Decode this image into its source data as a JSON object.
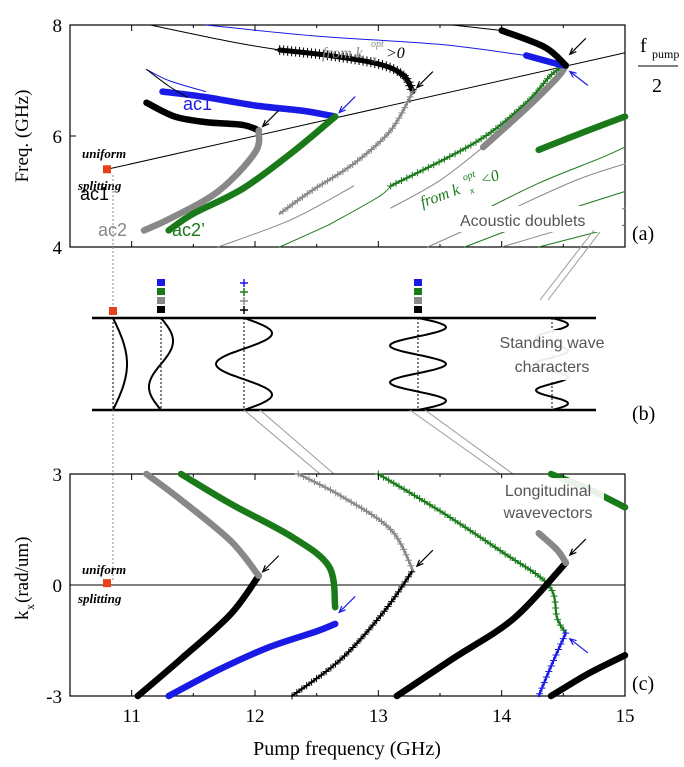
{
  "chart_data": [
    {
      "id": "a",
      "type": "line",
      "panel_label": "(a)",
      "ylabel": "Freq. (GHz)",
      "xlim": [
        10.5,
        15
      ],
      "ylim": [
        4,
        8
      ],
      "yticks": [
        "4",
        "6",
        "8"
      ],
      "fpump_label": {
        "num": "f",
        "sub": "pump",
        "den": "2"
      },
      "fpump_line": {
        "x": [
          10.8,
          15
        ],
        "y": [
          5.4,
          7.5
        ]
      },
      "annotations": {
        "ac1": "ac1",
        "ac1p": "ac1’",
        "ac2": "ac2",
        "ac2p": "ac2’",
        "uniform1": "uniform",
        "uniform2": "splitting",
        "from_pos_pre": "from k",
        "from_pos_sub": "x",
        "from_pos_sup": "opt",
        "from_pos_post": ">0",
        "from_neg_pre": "from k",
        "from_neg_sub": "x",
        "from_neg_sup": "opt",
        "from_neg_post": "<0",
        "acoustic_doublets": "Acoustic doublets"
      },
      "marker_uniform": {
        "x": 10.8,
        "y": 5.4,
        "color": "#e8401c"
      },
      "series": [
        {
          "color": "#000000",
          "style": "thick",
          "points": [
            [
              11.12,
              6.6
            ],
            [
              11.35,
              6.35
            ],
            [
              11.6,
              6.25
            ],
            [
              11.9,
              6.2
            ],
            [
              12.03,
              6.1
            ]
          ]
        },
        {
          "color": "#888888",
          "style": "thick",
          "points": [
            [
              12.03,
              6.1
            ],
            [
              12.0,
              5.7
            ],
            [
              11.7,
              5.0
            ],
            [
              11.3,
              4.5
            ],
            [
              11.1,
              4.3
            ]
          ]
        },
        {
          "color": "#1a1ae6",
          "style": "thick",
          "points": [
            [
              11.25,
              6.8
            ],
            [
              11.6,
              6.7
            ],
            [
              12.0,
              6.55
            ],
            [
              12.4,
              6.45
            ],
            [
              12.65,
              6.35
            ]
          ]
        },
        {
          "color": "#1a7a1a",
          "style": "thick",
          "points": [
            [
              12.65,
              6.35
            ],
            [
              12.3,
              5.7
            ],
            [
              11.9,
              5.05
            ],
            [
              11.5,
              4.6
            ],
            [
              11.3,
              4.3
            ]
          ]
        },
        {
          "color": "#1a1ae6",
          "style": "thin",
          "points": [
            [
              11.12,
              7.2
            ],
            [
              11.3,
              7.0
            ],
            [
              11.6,
              6.8
            ]
          ]
        },
        {
          "color": "#000000",
          "style": "thin",
          "points": [
            [
              11.12,
              7.2
            ],
            [
              11.3,
              6.9
            ],
            [
              11.45,
              6.7
            ]
          ]
        },
        {
          "color": "#000000",
          "style": "thin",
          "points": [
            [
              11.15,
              8.0
            ],
            [
              11.8,
              7.7
            ],
            [
              12.2,
              7.55
            ]
          ]
        },
        {
          "color": "#000000",
          "style": "thickplus",
          "points": [
            [
              12.2,
              7.55
            ],
            [
              12.6,
              7.45
            ],
            [
              13.0,
              7.3
            ],
            [
              13.2,
              7.1
            ],
            [
              13.28,
              6.8
            ]
          ]
        },
        {
          "color": "#888888",
          "style": "thinplus",
          "points": [
            [
              13.28,
              6.8
            ],
            [
              13.1,
              6.1
            ],
            [
              12.8,
              5.5
            ],
            [
              12.45,
              5.0
            ],
            [
              12.2,
              4.6
            ]
          ]
        },
        {
          "color": "#1a7a1a",
          "style": "thinplus",
          "points": [
            [
              13.1,
              5.1
            ],
            [
              13.8,
              5.9
            ],
            [
              14.2,
              6.6
            ],
            [
              14.4,
              7.1
            ],
            [
              14.52,
              7.27
            ]
          ]
        },
        {
          "color": "#1a7a1a",
          "style": "thin",
          "points": [
            [
              12.6,
              4.4
            ],
            [
              13.0,
              4.9
            ],
            [
              13.1,
              5.1
            ]
          ]
        },
        {
          "color": "#888888",
          "style": "thick",
          "points": [
            [
              13.85,
              5.8
            ],
            [
              14.2,
              6.5
            ],
            [
              14.45,
              7.05
            ],
            [
              14.52,
              7.27
            ]
          ]
        },
        {
          "color": "#888888",
          "style": "thin",
          "points": [
            [
              13.1,
              4.7
            ],
            [
              13.5,
              5.2
            ],
            [
              13.85,
              5.8
            ]
          ]
        },
        {
          "color": "#1a1ae6",
          "style": "thin",
          "points": [
            [
              11.6,
              8.0
            ],
            [
              12.5,
              7.8
            ],
            [
              13.5,
              7.65
            ],
            [
              14.2,
              7.45
            ]
          ]
        },
        {
          "color": "#1a1ae6",
          "style": "thick",
          "points": [
            [
              14.2,
              7.45
            ],
            [
              14.45,
              7.3
            ],
            [
              14.52,
              7.27
            ]
          ]
        },
        {
          "color": "#000000",
          "style": "thin",
          "points": [
            [
              13.6,
              8.0
            ],
            [
              14.0,
              7.9
            ]
          ]
        },
        {
          "color": "#000000",
          "style": "thick",
          "points": [
            [
              14.0,
              7.9
            ],
            [
              14.35,
              7.6
            ],
            [
              14.52,
              7.27
            ]
          ]
        },
        {
          "color": "#1a7a1a",
          "style": "thick",
          "points": [
            [
              14.3,
              5.75
            ],
            [
              14.7,
              6.1
            ],
            [
              15.0,
              6.35
            ]
          ]
        },
        {
          "color": "#1a7a1a",
          "style": "thin",
          "points": [
            [
              13.8,
              4.6
            ],
            [
              14.3,
              5.15
            ],
            [
              14.8,
              5.6
            ],
            [
              15.0,
              5.8
            ]
          ]
        },
        {
          "color": "#888888",
          "style": "thin",
          "points": [
            [
              13.4,
              4.0
            ],
            [
              14.0,
              4.6
            ],
            [
              14.6,
              5.2
            ],
            [
              15.0,
              5.5
            ]
          ]
        },
        {
          "color": "#1a7a1a",
          "style": "thin",
          "points": [
            [
              13.7,
              4.0
            ],
            [
              14.3,
              4.5
            ],
            [
              15.0,
              5.0
            ]
          ]
        },
        {
          "color": "#888888",
          "style": "thin",
          "points": [
            [
              14.0,
              4.0
            ],
            [
              14.6,
              4.4
            ],
            [
              15.0,
              4.7
            ]
          ]
        },
        {
          "color": "#1a7a1a",
          "style": "thin",
          "points": [
            [
              14.3,
              4.0
            ],
            [
              15.0,
              4.4
            ]
          ]
        },
        {
          "color": "#888888",
          "style": "thin",
          "points": [
            [
              11.7,
              4.0
            ],
            [
              12.3,
              4.5
            ],
            [
              12.8,
              5.1
            ]
          ]
        },
        {
          "color": "#1a7a1a",
          "style": "thin",
          "points": [
            [
              12.2,
              4.0
            ],
            [
              12.6,
              4.4
            ]
          ]
        }
      ],
      "arrows": [
        {
          "x": 12.03,
          "y": 6.1,
          "color": "#000000"
        },
        {
          "x": 12.65,
          "y": 6.35,
          "color": "#1a1ae6"
        },
        {
          "x": 13.28,
          "y": 6.8,
          "color": "#000000"
        },
        {
          "x": 14.52,
          "y": 7.4,
          "color": "#000000",
          "dir": "down"
        },
        {
          "x": 14.52,
          "y": 7.2,
          "color": "#1a1ae6",
          "dir": "up"
        }
      ]
    },
    {
      "id": "b",
      "type": "diagram",
      "panel_label": "(b)",
      "annotations": {
        "line1": "Standing wave",
        "line2": "characters"
      }
    },
    {
      "id": "c",
      "type": "line",
      "panel_label": "(c)",
      "ylabel_main": "k",
      "ylabel_sub": "x",
      "ylabel_rest": " (rad/um)",
      "xlabel": "Pump frequency (GHz)",
      "xlim": [
        10.5,
        15
      ],
      "ylim": [
        -3,
        3
      ],
      "xticks": [
        "11",
        "12",
        "13",
        "14",
        "15"
      ],
      "yticks": [
        "-3",
        "0",
        "3"
      ],
      "annotations": {
        "uniform1": "uniform",
        "uniform2": "splitting",
        "long1": "Longitudinal",
        "long2": "wavevectors"
      },
      "marker_uniform": {
        "x": 10.8,
        "y": 0.05,
        "color": "#e8401c"
      },
      "series": [
        {
          "color": "#000000",
          "style": "thick",
          "points": [
            [
              11.05,
              -3.0
            ],
            [
              11.4,
              -2.0
            ],
            [
              11.8,
              -0.8
            ],
            [
              12.03,
              0.25
            ]
          ]
        },
        {
          "color": "#888888",
          "style": "thick",
          "points": [
            [
              11.12,
              3.0
            ],
            [
              11.4,
              2.3
            ],
            [
              11.8,
              1.2
            ],
            [
              12.03,
              0.25
            ]
          ]
        },
        {
          "color": "#1a7a1a",
          "style": "thick",
          "points": [
            [
              11.4,
              3.0
            ],
            [
              11.8,
              2.2
            ],
            [
              12.3,
              1.3
            ],
            [
              12.6,
              0.5
            ],
            [
              12.65,
              -0.6
            ]
          ]
        },
        {
          "color": "#1a1ae6",
          "style": "thick",
          "points": [
            [
              11.3,
              -3.0
            ],
            [
              11.7,
              -2.3
            ],
            [
              12.1,
              -1.7
            ],
            [
              12.5,
              -1.25
            ],
            [
              12.65,
              -1.05
            ]
          ]
        },
        {
          "color": "#000000",
          "style": "thinplus",
          "points": [
            [
              12.3,
              -3.0
            ],
            [
              12.7,
              -2.0
            ],
            [
              13.05,
              -0.7
            ],
            [
              13.28,
              0.4
            ]
          ]
        },
        {
          "color": "#888888",
          "style": "thinplus",
          "points": [
            [
              12.35,
              3.0
            ],
            [
              12.7,
              2.4
            ],
            [
              13.1,
              1.5
            ],
            [
              13.28,
              0.4
            ]
          ]
        },
        {
          "color": "#1a7a1a",
          "style": "thinplus",
          "points": [
            [
              13.0,
              3.0
            ],
            [
              13.5,
              2.0
            ],
            [
              14.0,
              0.9
            ],
            [
              14.38,
              0.0
            ],
            [
              14.45,
              -0.9
            ],
            [
              14.52,
              -1.3
            ]
          ]
        },
        {
          "color": "#1a1ae6",
          "style": "thinplus",
          "points": [
            [
              14.52,
              -1.3
            ],
            [
              14.4,
              -2.2
            ],
            [
              14.3,
              -3.0
            ]
          ]
        },
        {
          "color": "#000000",
          "style": "thick",
          "points": [
            [
              13.15,
              -3.0
            ],
            [
              13.6,
              -2.0
            ],
            [
              14.1,
              -0.9
            ],
            [
              14.52,
              0.6
            ]
          ]
        },
        {
          "color": "#888888",
          "style": "thick",
          "points": [
            [
              14.3,
              1.4
            ],
            [
              14.45,
              0.95
            ],
            [
              14.52,
              0.6
            ]
          ]
        },
        {
          "color": "#000000",
          "style": "thick",
          "points": [
            [
              14.4,
              -3.0
            ],
            [
              14.7,
              -2.4
            ],
            [
              15.0,
              -1.9
            ]
          ]
        },
        {
          "color": "#1a7a1a",
          "style": "thick",
          "points": [
            [
              14.4,
              3.0
            ],
            [
              14.7,
              2.6
            ],
            [
              15.0,
              2.1
            ]
          ]
        }
      ],
      "arrows": [
        {
          "x": 12.03,
          "y": 0.25,
          "color": "#000000"
        },
        {
          "x": 12.65,
          "y": -0.85,
          "color": "#1a1ae6"
        },
        {
          "x": 13.28,
          "y": 0.4,
          "color": "#000000"
        },
        {
          "x": 14.52,
          "y": 0.7,
          "color": "#000000",
          "dir": "down"
        },
        {
          "x": 14.52,
          "y": -1.4,
          "color": "#1a1ae6",
          "dir": "up"
        }
      ]
    }
  ]
}
